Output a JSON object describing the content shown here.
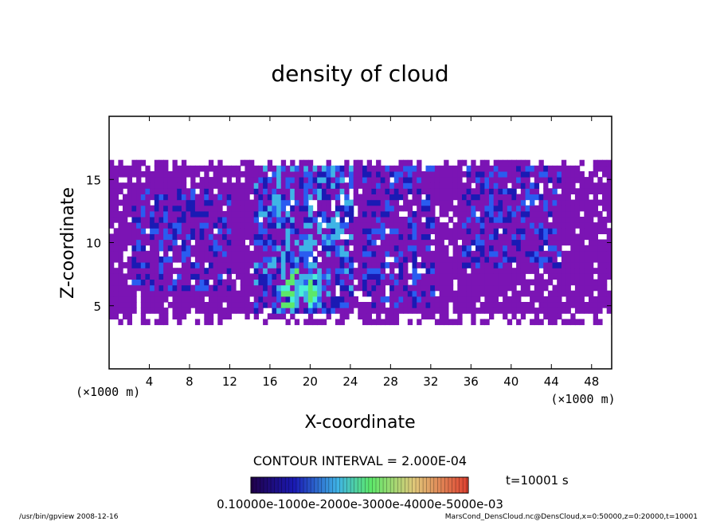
{
  "chart_data": {
    "type": "heatmap",
    "title": "density of cloud",
    "xlabel": "X-coordinate",
    "ylabel": "Z-coordinate",
    "x_unit": "(×1000 m)",
    "z_unit": "(×1000 m)",
    "xlim": [
      0,
      50
    ],
    "ylim": [
      0,
      20
    ],
    "x_ticks": [
      4,
      8,
      12,
      16,
      20,
      24,
      28,
      32,
      36,
      40,
      44,
      48
    ],
    "y_ticks": [
      5,
      10,
      15
    ],
    "contour_interval_text": "CONTOUR INTERVAL = 2.000E-04",
    "time_label": "t=10001 s",
    "colorbar_labels_text": "0.10000e-1000e-2000e-3000e-4000e-5000e-03",
    "footer_left": "/usr/bin/gpview  2008-12-16",
    "footer_right": "MarsCond_DensCloud.nc@DensCloud,x=0:50000,z=0:20000,t=10001",
    "cloud_layer_z": [
      3.5,
      16.5
    ],
    "colors": [
      "#7b14b4",
      "#1a1ab4",
      "#2a5cf0",
      "#3fb4e6",
      "#48f0d8",
      "#5ce86a"
    ],
    "regions": [
      {
        "x": [
          2,
          12
        ],
        "z": [
          6,
          14
        ],
        "level": 2
      },
      {
        "x": [
          14,
          24
        ],
        "z": [
          4,
          16
        ],
        "level": 3
      },
      {
        "x": [
          17,
          21
        ],
        "z": [
          4.5,
          8
        ],
        "level": 5
      },
      {
        "x": [
          25,
          32
        ],
        "z": [
          4.5,
          16
        ],
        "level": 2
      },
      {
        "x": [
          35,
          45
        ],
        "z": [
          8,
          16
        ],
        "level": 2
      }
    ]
  }
}
